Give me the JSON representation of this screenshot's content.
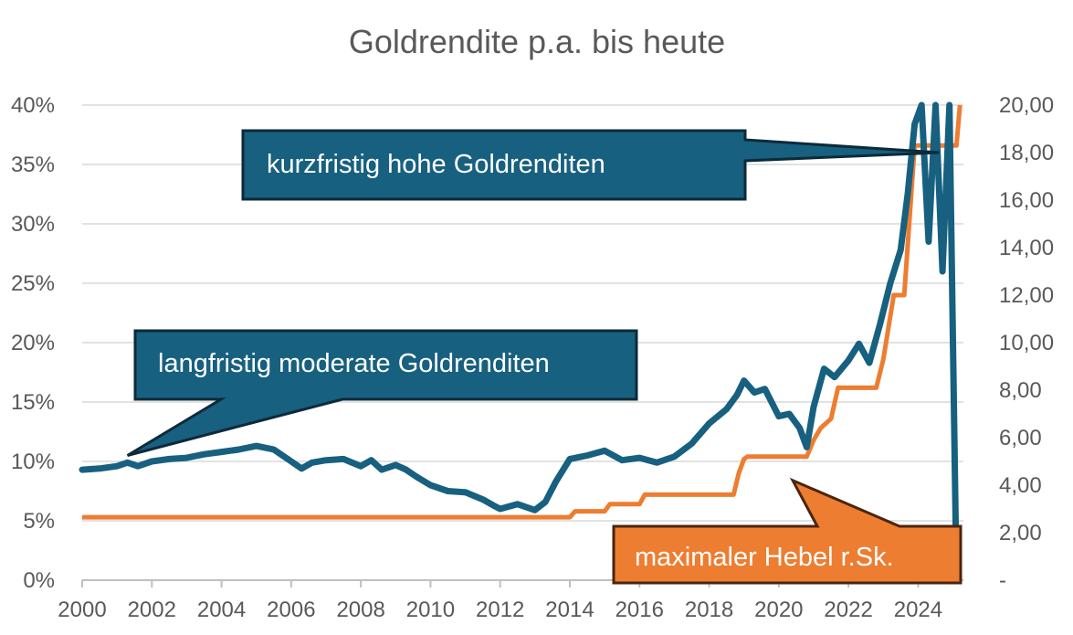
{
  "chart_data": {
    "type": "line",
    "title": "",
    "subtitle": "Goldrendite p.a. bis heute",
    "xlabel": "",
    "ylabel": "",
    "y2label": "",
    "xlim": [
      2000,
      2025.3
    ],
    "ylim": [
      0,
      40
    ],
    "y2lim": [
      0,
      20
    ],
    "x_ticks": [
      "2000",
      "2002",
      "2004",
      "2006",
      "2008",
      "2010",
      "2012",
      "2014",
      "2016",
      "2018",
      "2020",
      "2022",
      "2024"
    ],
    "y_ticks": [
      "0%",
      "5%",
      "10%",
      "15%",
      "20%",
      "25%",
      "30%",
      "35%",
      "40%"
    ],
    "y2_ticks": [
      "-",
      "2,00",
      "4,00",
      "6,00",
      "8,00",
      "10,00",
      "12,00",
      "14,00",
      "16,00",
      "18,00",
      "20,00"
    ],
    "grid": true,
    "legend": "none",
    "colors": {
      "gold_return": "#17607f",
      "leverage": "#ed7d31",
      "callout_blue": "#17607f",
      "callout_orange": "#ed7d31",
      "callout_border": "#0d2a3a",
      "callout_border_orange": "#4a2510",
      "grid": "#d9d9d9",
      "text": "#595959"
    },
    "series": [
      {
        "axis": "left",
        "x": [
          2000.0,
          2000.5,
          2001.0,
          2001.3,
          2001.6,
          2002.0,
          2002.5,
          2003.0,
          2003.5,
          2004.0,
          2004.5,
          2005.0,
          2005.5,
          2006.0,
          2006.3,
          2006.6,
          2007.0,
          2007.5,
          2008.0,
          2008.3,
          2008.6,
          2009.0,
          2009.3,
          2009.6,
          2010.0,
          2010.5,
          2011.0,
          2011.5,
          2011.8,
          2012.0,
          2012.5,
          2013.0,
          2013.3,
          2013.6,
          2014.0,
          2014.5,
          2015.0,
          2015.5,
          2016.0,
          2016.5,
          2017.0,
          2017.5,
          2018.0,
          2018.5,
          2018.8,
          2019.0,
          2019.3,
          2019.6,
          2020.0,
          2020.3,
          2020.6,
          2020.8,
          2021.0,
          2021.3,
          2021.6,
          2022.0,
          2022.3,
          2022.6,
          2022.9,
          2023.2,
          2023.5,
          2023.7,
          2023.9,
          2024.1,
          2024.3,
          2024.5,
          2024.7,
          2024.9,
          2025.1
        ],
        "values": [
          9.3,
          9.4,
          9.6,
          9.9,
          9.6,
          10.0,
          10.2,
          10.3,
          10.6,
          10.8,
          11.0,
          11.3,
          11.0,
          10.0,
          9.4,
          9.9,
          10.1,
          10.2,
          9.6,
          10.1,
          9.3,
          9.7,
          9.3,
          8.7,
          8.0,
          7.5,
          7.4,
          6.8,
          6.3,
          6.0,
          6.4,
          5.9,
          6.6,
          8.3,
          10.2,
          10.5,
          10.9,
          10.1,
          10.3,
          9.9,
          10.4,
          11.5,
          13.2,
          14.4,
          15.6,
          16.8,
          15.8,
          16.1,
          13.8,
          14.0,
          12.8,
          11.2,
          14.6,
          17.8,
          17.1,
          18.5,
          19.9,
          18.3,
          21.5,
          25.0,
          27.8,
          32.5,
          38.4,
          40.0,
          28.5,
          40.0,
          26.0,
          40.0,
          0.0
        ]
      },
      {
        "axis": "right",
        "x": [
          2000.0,
          2014.0,
          2014.15,
          2015.0,
          2015.15,
          2016.0,
          2016.15,
          2018.7,
          2018.85,
          2019.0,
          2019.1,
          2020.8,
          2021.0,
          2021.2,
          2021.5,
          2021.7,
          2022.0,
          2022.8,
          2023.0,
          2023.3,
          2023.6,
          2023.9,
          2024.2,
          2025.1,
          2025.2
        ],
        "values": [
          2.65,
          2.65,
          2.9,
          2.9,
          3.2,
          3.2,
          3.6,
          3.6,
          4.5,
          5.1,
          5.2,
          5.2,
          5.9,
          6.4,
          6.8,
          8.1,
          8.1,
          8.1,
          9.3,
          12.0,
          12.0,
          18.3,
          18.3,
          18.3,
          20.0
        ]
      }
    ],
    "annotations": [
      {
        "text": "kurzfristig hohe Goldrenditen",
        "target_x": 2024.6,
        "target_y": 36.0
      },
      {
        "text": "langfristig moderate Goldrenditen",
        "target_x": 2001.3,
        "target_y": 10.5
      },
      {
        "text": "maximaler Hebel r.Sk.",
        "target_x": 2020.4,
        "target_y2": 4.2
      }
    ]
  }
}
